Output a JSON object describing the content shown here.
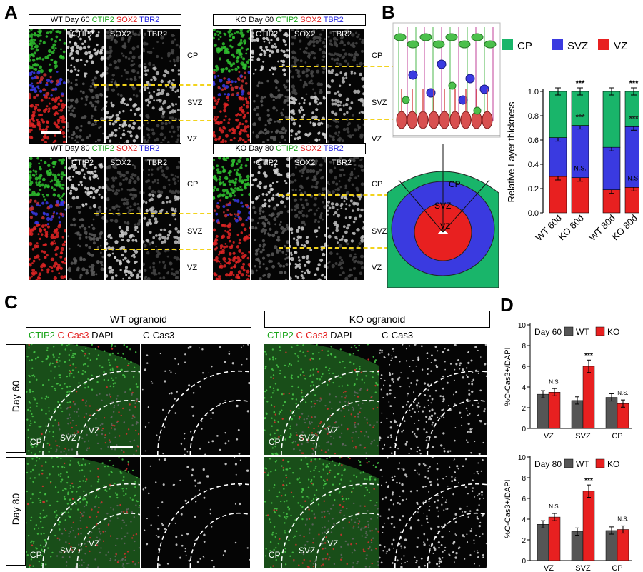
{
  "panel_letters": {
    "a": "A",
    "b": "B",
    "c": "C",
    "d": "D"
  },
  "panelA": {
    "blocks": [
      {
        "title_prefix": "WT Day 60 ",
        "ch1": "CTIP2",
        "ch2": "SOX2",
        "ch3": "TBR2"
      },
      {
        "title_prefix": "KO Day 60 ",
        "ch1": "CTIP2",
        "ch2": "SOX2",
        "ch3": "TBR2"
      },
      {
        "title_prefix": "WT Day 80 ",
        "ch1": "CTIP2",
        "ch2": "SOX2",
        "ch3": "TBR2"
      },
      {
        "title_prefix": "KO Day 80 ",
        "ch1": "CTIP2",
        "ch2": "SOX2",
        "ch3": "TBR2"
      }
    ],
    "channel_labels": [
      "CTIP2",
      "SOX2",
      "TBR2"
    ],
    "zones": [
      "CP",
      "SVZ",
      "VZ"
    ]
  },
  "panelB": {
    "schematic_labels": {
      "cp": "CP",
      "svz": "SVZ",
      "vz": "VZ"
    },
    "colors": {
      "cp": "#19b56a",
      "svz": "#3a3ae0",
      "vz": "#e82020"
    },
    "chart_data": {
      "type": "bar",
      "stacked": true,
      "ylabel": "Relative Layer thickness",
      "ylim": [
        0,
        1.0
      ],
      "yticks": [
        "0.0",
        "0.2",
        "0.4",
        "0.6",
        "0.8",
        "1.0"
      ],
      "categories": [
        "WT 60d",
        "KO 60d",
        "WT 80d",
        "KO 80d"
      ],
      "series": [
        {
          "name": "VZ",
          "values": [
            0.3,
            0.29,
            0.19,
            0.21
          ]
        },
        {
          "name": "SVZ",
          "values": [
            0.32,
            0.43,
            0.35,
            0.5
          ]
        },
        {
          "name": "CP",
          "values": [
            0.38,
            0.28,
            0.46,
            0.29
          ]
        }
      ],
      "legend": [
        "CP",
        "SVZ",
        "VZ"
      ],
      "legend_position": "top",
      "annotations": {
        "top": [
          "***",
          "***"
        ],
        "svz": [
          "***",
          "***"
        ],
        "vz": [
          "N.S.",
          "N.S."
        ]
      }
    }
  },
  "panelC": {
    "headers": [
      "WT ogranoid",
      "KO ogranoid"
    ],
    "channel_title": {
      "c1": "CTIP2",
      "c2": "C-Cas3",
      "c3": "DAPI"
    },
    "single_channel": "C-Cas3",
    "rows": [
      "Day 60",
      "Day 80"
    ],
    "zones": [
      "CP",
      "SVZ",
      "VZ"
    ]
  },
  "panelD": {
    "chart_data": [
      {
        "type": "bar",
        "title": "Day 60",
        "ylabel": "%C-Cas3+/DAPI",
        "ylim": [
          0,
          10
        ],
        "yticks": [
          "0",
          "2",
          "4",
          "6",
          "8",
          "10"
        ],
        "categories": [
          "VZ",
          "SVZ",
          "CP"
        ],
        "series": [
          {
            "name": "WT",
            "values": [
              3.3,
              2.7,
              3.0
            ]
          },
          {
            "name": "KO",
            "values": [
              3.5,
              6.0,
              2.4
            ]
          }
        ],
        "annotations": [
          "N.S.",
          "***",
          "N.S."
        ]
      },
      {
        "type": "bar",
        "title": "Day 80",
        "ylabel": "%C-Cas3+/DAPI",
        "ylim": [
          0,
          10
        ],
        "yticks": [
          "0",
          "2",
          "4",
          "6",
          "8",
          "10"
        ],
        "categories": [
          "VZ",
          "SVZ",
          "CP"
        ],
        "series": [
          {
            "name": "WT",
            "values": [
              3.5,
              2.8,
              2.9
            ]
          },
          {
            "name": "KO",
            "values": [
              4.2,
              6.7,
              3.0
            ]
          }
        ],
        "annotations": [
          "N.S.",
          "***",
          "N.S."
        ]
      }
    ],
    "colors": {
      "wt": "#555555",
      "ko": "#e82020"
    }
  }
}
